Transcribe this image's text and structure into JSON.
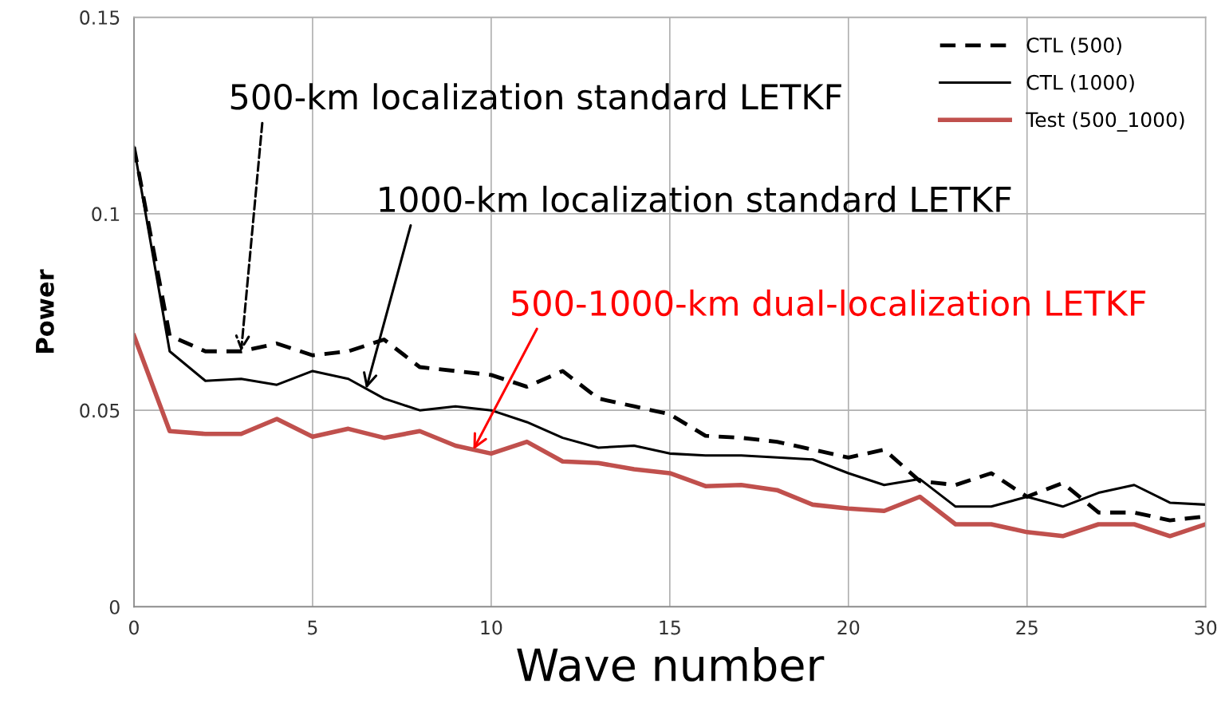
{
  "chart_data": {
    "type": "line",
    "xlabel": "Wave number",
    "ylabel": "Power",
    "x": [
      0,
      1,
      2,
      3,
      4,
      5,
      6,
      7,
      8,
      9,
      10,
      11,
      12,
      13,
      14,
      15,
      16,
      17,
      18,
      19,
      20,
      21,
      22,
      23,
      24,
      25,
      26,
      27,
      28,
      29,
      30
    ],
    "series": [
      {
        "name": "CTL (500)",
        "color": "#000000",
        "line_style": "dashed",
        "values": [
          0.117,
          0.069,
          0.065,
          0.065,
          0.067,
          0.064,
          0.065,
          0.068,
          0.061,
          0.06,
          0.059,
          0.056,
          0.06,
          0.053,
          0.051,
          0.049,
          0.0435,
          0.043,
          0.042,
          0.04,
          0.038,
          0.04,
          0.032,
          0.031,
          0.034,
          0.028,
          0.0315,
          0.024,
          0.024,
          0.022,
          0.023
        ]
      },
      {
        "name": "CTL (1000)",
        "color": "#000000",
        "line_style": "solid",
        "values": [
          0.117,
          0.065,
          0.0575,
          0.058,
          0.0565,
          0.06,
          0.058,
          0.053,
          0.05,
          0.051,
          0.05,
          0.047,
          0.043,
          0.0405,
          0.041,
          0.039,
          0.0385,
          0.0385,
          0.038,
          0.0375,
          0.034,
          0.031,
          0.0325,
          0.0255,
          0.0255,
          0.028,
          0.0255,
          0.029,
          0.031,
          0.0265,
          0.026
        ]
      },
      {
        "name": "Test (500_1000)",
        "color": "#c0504d",
        "line_style": "solid",
        "values": [
          0.069,
          0.0447,
          0.044,
          0.044,
          0.0478,
          0.0433,
          0.0453,
          0.043,
          0.0447,
          0.041,
          0.039,
          0.042,
          0.037,
          0.0366,
          0.035,
          0.034,
          0.0307,
          0.031,
          0.0297,
          0.026,
          0.025,
          0.0244,
          0.028,
          0.021,
          0.021,
          0.019,
          0.018,
          0.021,
          0.021,
          0.018,
          0.021
        ]
      }
    ],
    "xlim": [
      0,
      30
    ],
    "xticks": [
      0,
      5,
      10,
      15,
      20,
      25,
      30
    ],
    "ylim": [
      0,
      0.15
    ],
    "yticks": [
      0,
      0.05,
      0.1,
      0.15
    ],
    "grid": true,
    "legend": "top right",
    "marker": "none",
    "annotations": [
      {
        "text": "500-km localization standard LETKF",
        "x": 3,
        "y": 0.065
      },
      {
        "text": "1000-km localization standard LETKF",
        "x": 6.5,
        "y": 0.0555
      },
      {
        "text": "500-1000-km dual-localization LETKF",
        "x": 9.5,
        "y": 0.04
      }
    ]
  }
}
